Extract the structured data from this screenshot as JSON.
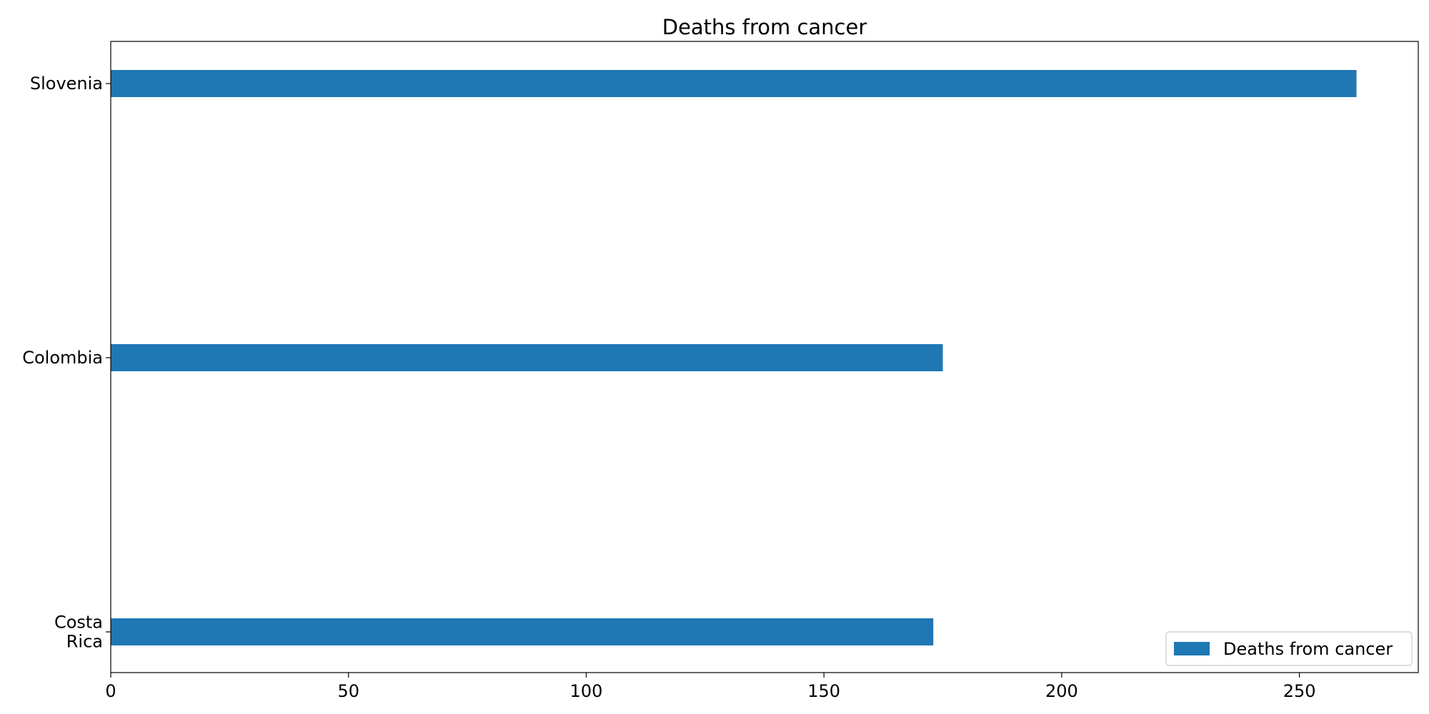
{
  "chart_data": {
    "type": "bar",
    "orientation": "horizontal",
    "title": "Deaths from cancer",
    "xlabel": "",
    "ylabel": "",
    "categories": [
      "Costa Rica",
      "Colombia",
      "Slovenia"
    ],
    "category_label_lines": [
      [
        "Costa",
        "Rica"
      ],
      [
        "Colombia"
      ],
      [
        "Slovenia"
      ]
    ],
    "series": [
      {
        "name": "Deaths from cancer",
        "values": [
          173,
          175,
          262
        ],
        "color": "#1f77b4"
      }
    ],
    "xlim": [
      0,
      275
    ],
    "xticks": [
      0,
      50,
      100,
      150,
      200,
      250
    ],
    "grid": false,
    "legend_position": "lower-right"
  }
}
